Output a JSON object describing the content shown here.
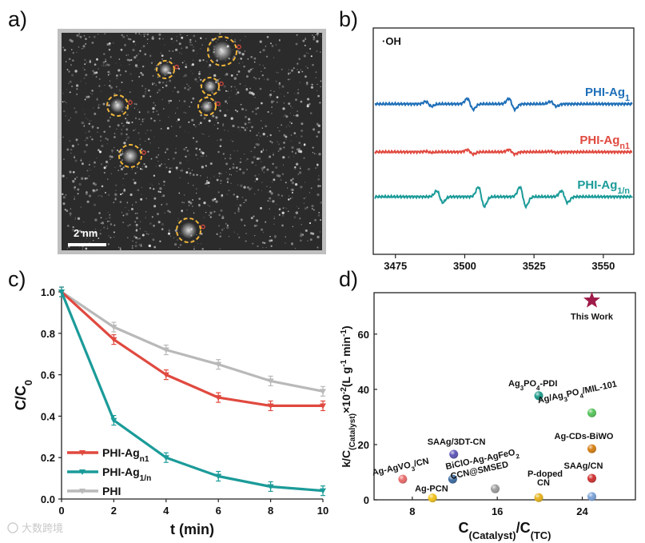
{
  "panels": {
    "a": {
      "letter": "a)",
      "scale_bar": "2 nm"
    },
    "b": {
      "letter": "b)"
    },
    "c": {
      "letter": "c)"
    },
    "d": {
      "letter": "d)"
    }
  },
  "watermark": "大数跨境",
  "colors": {
    "blue": "#1f6fb8",
    "red": "#e0493f",
    "teal": "#1b9b99",
    "gray": "#b9b9b9",
    "star": "#9e1b4a",
    "circle": "#f0b53a"
  },
  "chart_data": [
    {
      "id": "b",
      "type": "line",
      "title": "·OH",
      "xlabel": "",
      "ylabel": "",
      "xlim": [
        3467,
        3561
      ],
      "x_ticks": [
        3475,
        3500,
        3525,
        3550
      ],
      "series": [
        {
          "name": "PHI-Ag",
          "sub": "1",
          "color": "#1f6fb8",
          "signal_lines": [
            [
              3487,
              0.35
            ],
            [
              3502,
              0.8
            ],
            [
              3517,
              0.8
            ],
            [
              3532,
              0.35
            ]
          ]
        },
        {
          "name": "PHI-Ag",
          "sub": "n1",
          "color": "#e0493f",
          "signal_lines": [
            [
              3487,
              0.12
            ],
            [
              3502,
              0.45
            ],
            [
              3517,
              0.45
            ],
            [
              3532,
              0.12
            ]
          ]
        },
        {
          "name": "PHI-Ag",
          "sub": "1/n",
          "color": "#1b9b99",
          "signal_lines": [
            [
              3491,
              0.6
            ],
            [
              3506,
              1.0
            ],
            [
              3521,
              1.0
            ],
            [
              3536,
              0.6
            ]
          ]
        }
      ]
    },
    {
      "id": "c",
      "type": "line",
      "xlabel": "t (min)",
      "ylabel": "C/C",
      "ylabel_sub": "0",
      "xlim": [
        0,
        10
      ],
      "ylim": [
        0,
        1.0
      ],
      "x_ticks": [
        0,
        2,
        4,
        6,
        8,
        10
      ],
      "y_ticks": [
        "0.0",
        "0.2",
        "0.4",
        "0.6",
        "0.8",
        "1.0"
      ],
      "x": [
        0,
        2,
        4,
        6,
        8,
        10
      ],
      "series": [
        {
          "name": "PHI",
          "sub": "",
          "color": "#b9b9b9",
          "values": [
            1.0,
            0.83,
            0.72,
            0.65,
            0.57,
            0.52
          ]
        },
        {
          "name": "PHI-Ag",
          "sub": "n1",
          "color": "#e0493f",
          "values": [
            1.0,
            0.77,
            0.6,
            0.49,
            0.45,
            0.45
          ]
        },
        {
          "name": "PHI-Ag",
          "sub": "1/n",
          "color": "#1b9b99",
          "values": [
            1.0,
            0.38,
            0.2,
            0.11,
            0.06,
            0.04
          ]
        }
      ],
      "legend": [
        {
          "name": "PHI-Ag",
          "sub": "n1",
          "color": "#e0493f"
        },
        {
          "name": "PHI-Ag",
          "sub": "1/n",
          "color": "#1b9b99"
        },
        {
          "name": "PHI",
          "sub": "",
          "color": "#b9b9b9"
        }
      ]
    },
    {
      "id": "d",
      "type": "scatter",
      "xlabel": "C",
      "xlabel_sub1": "(Catalyst)",
      "xlabel_mid": "/C",
      "xlabel_sub2": "(TC)",
      "ylabel": "k/C",
      "ylabel_sub": "(Catalyst)",
      "ylabel_rest": "×10",
      "ylabel_sup": "-2",
      "ylabel_unit": "(L g",
      "ylabel_unit_sup": "-1",
      "ylabel_unit2": " min",
      "ylabel_unit2_sup": "-1",
      "ylabel_end": ")",
      "xlim": [
        4.4,
        29
      ],
      "ylim": [
        0,
        75
      ],
      "x_ticks": [
        8,
        16,
        24
      ],
      "y_ticks": [
        0,
        20,
        40,
        60
      ],
      "points": [
        {
          "label": "Ag-AgVO3/CN",
          "x": 7.1,
          "y": 7.5,
          "color": "#e96a6a"
        },
        {
          "label": "Ag-PCN",
          "x": 9.9,
          "y": 0.7,
          "color": "#f2c21a"
        },
        {
          "label": "SAAg/3DT-CN",
          "x": 11.9,
          "y": 16.5,
          "color": "#5d56b5"
        },
        {
          "label": "BiClO-Ag-AgFeO2",
          "x": 11.8,
          "y": 7.5,
          "color": "#3b6aa0"
        },
        {
          "label": "CCN@SMSED",
          "x": 15.8,
          "y": 4.0,
          "color": "#9c9c9c"
        },
        {
          "label": "Ag3PO4-PDI",
          "x": 19.9,
          "y": 37.7,
          "color": "#1d9a8a"
        },
        {
          "label": "P-doped CN",
          "x": 19.9,
          "y": 0.8,
          "color": "#e5b21a"
        },
        {
          "label": "Ag/Ag3PO4/MIL-101",
          "x": 24.9,
          "y": 31.5,
          "color": "#56c45a"
        },
        {
          "label": "Ag-CDs-BiWO",
          "x": 24.9,
          "y": 18.5,
          "color": "#d67f12"
        },
        {
          "label": "SAAg/CN",
          "x": 24.9,
          "y": 7.8,
          "color": "#cf3030"
        },
        {
          "label": "",
          "x": 24.9,
          "y": 1.2,
          "color": "#7aa2d6"
        },
        {
          "label": "This Work",
          "x": 24.9,
          "y": 72.2,
          "color": "#9e1b4a",
          "marker": "star"
        }
      ]
    }
  ]
}
